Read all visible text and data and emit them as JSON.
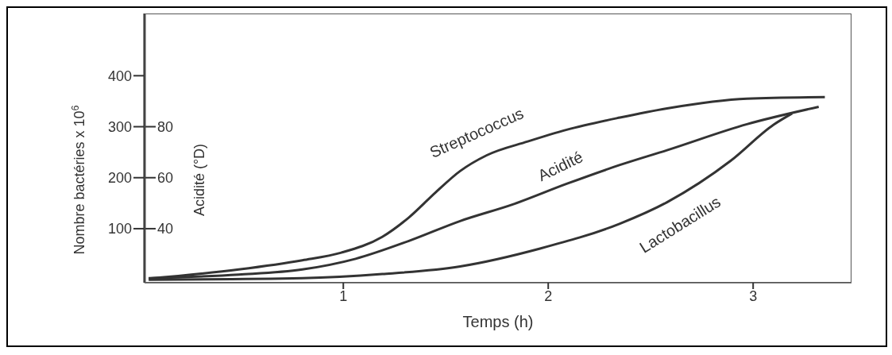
{
  "chart_data": {
    "type": "line",
    "xlabel": "Temps (h)",
    "ylabel": "Nombre bactéries x 10$^{6}$",
    "y2label": "Acidité (°D)",
    "xlim": [
      0.03,
      3.48
    ],
    "xticks": [
      1,
      2,
      3
    ],
    "ylim": [
      -6,
      522
    ],
    "yticks": [
      100,
      200,
      300,
      400
    ],
    "y2lim": [
      18.8,
      124.4
    ],
    "y2ticks": [
      40,
      60,
      80
    ],
    "series": [
      {
        "name": "Streptococcus",
        "color": "#333333",
        "x": [
          0.05,
          0.49,
          0.8,
          0.99,
          1.19,
          1.32,
          1.45,
          1.57,
          1.7,
          1.9,
          2.09,
          2.35,
          2.58,
          2.97,
          3.35
        ],
        "values": [
          2,
          20,
          38,
          53,
          84,
          122,
          171,
          213,
          244,
          271,
          294,
          318,
          336,
          355,
          358
        ]
      },
      {
        "name": "Acidité",
        "color": "#333333",
        "axis": "y2",
        "x": [
          0.05,
          0.49,
          0.8,
          1.06,
          1.32,
          1.57,
          1.83,
          2.09,
          2.35,
          2.58,
          2.97,
          3.32
        ],
        "values": [
          20.6,
          22,
          24,
          28.2,
          35.2,
          43,
          49.6,
          57.6,
          65,
          70.8,
          81,
          87.8
        ]
      },
      {
        "name": "Lactobacillus",
        "color": "#333333",
        "x": [
          0.05,
          0.8,
          1.19,
          1.57,
          1.96,
          2.35,
          2.58,
          2.89,
          3.1,
          3.19
        ],
        "values": [
          0,
          3,
          11,
          26,
          61,
          110,
          152,
          233,
          304,
          326
        ]
      }
    ]
  }
}
